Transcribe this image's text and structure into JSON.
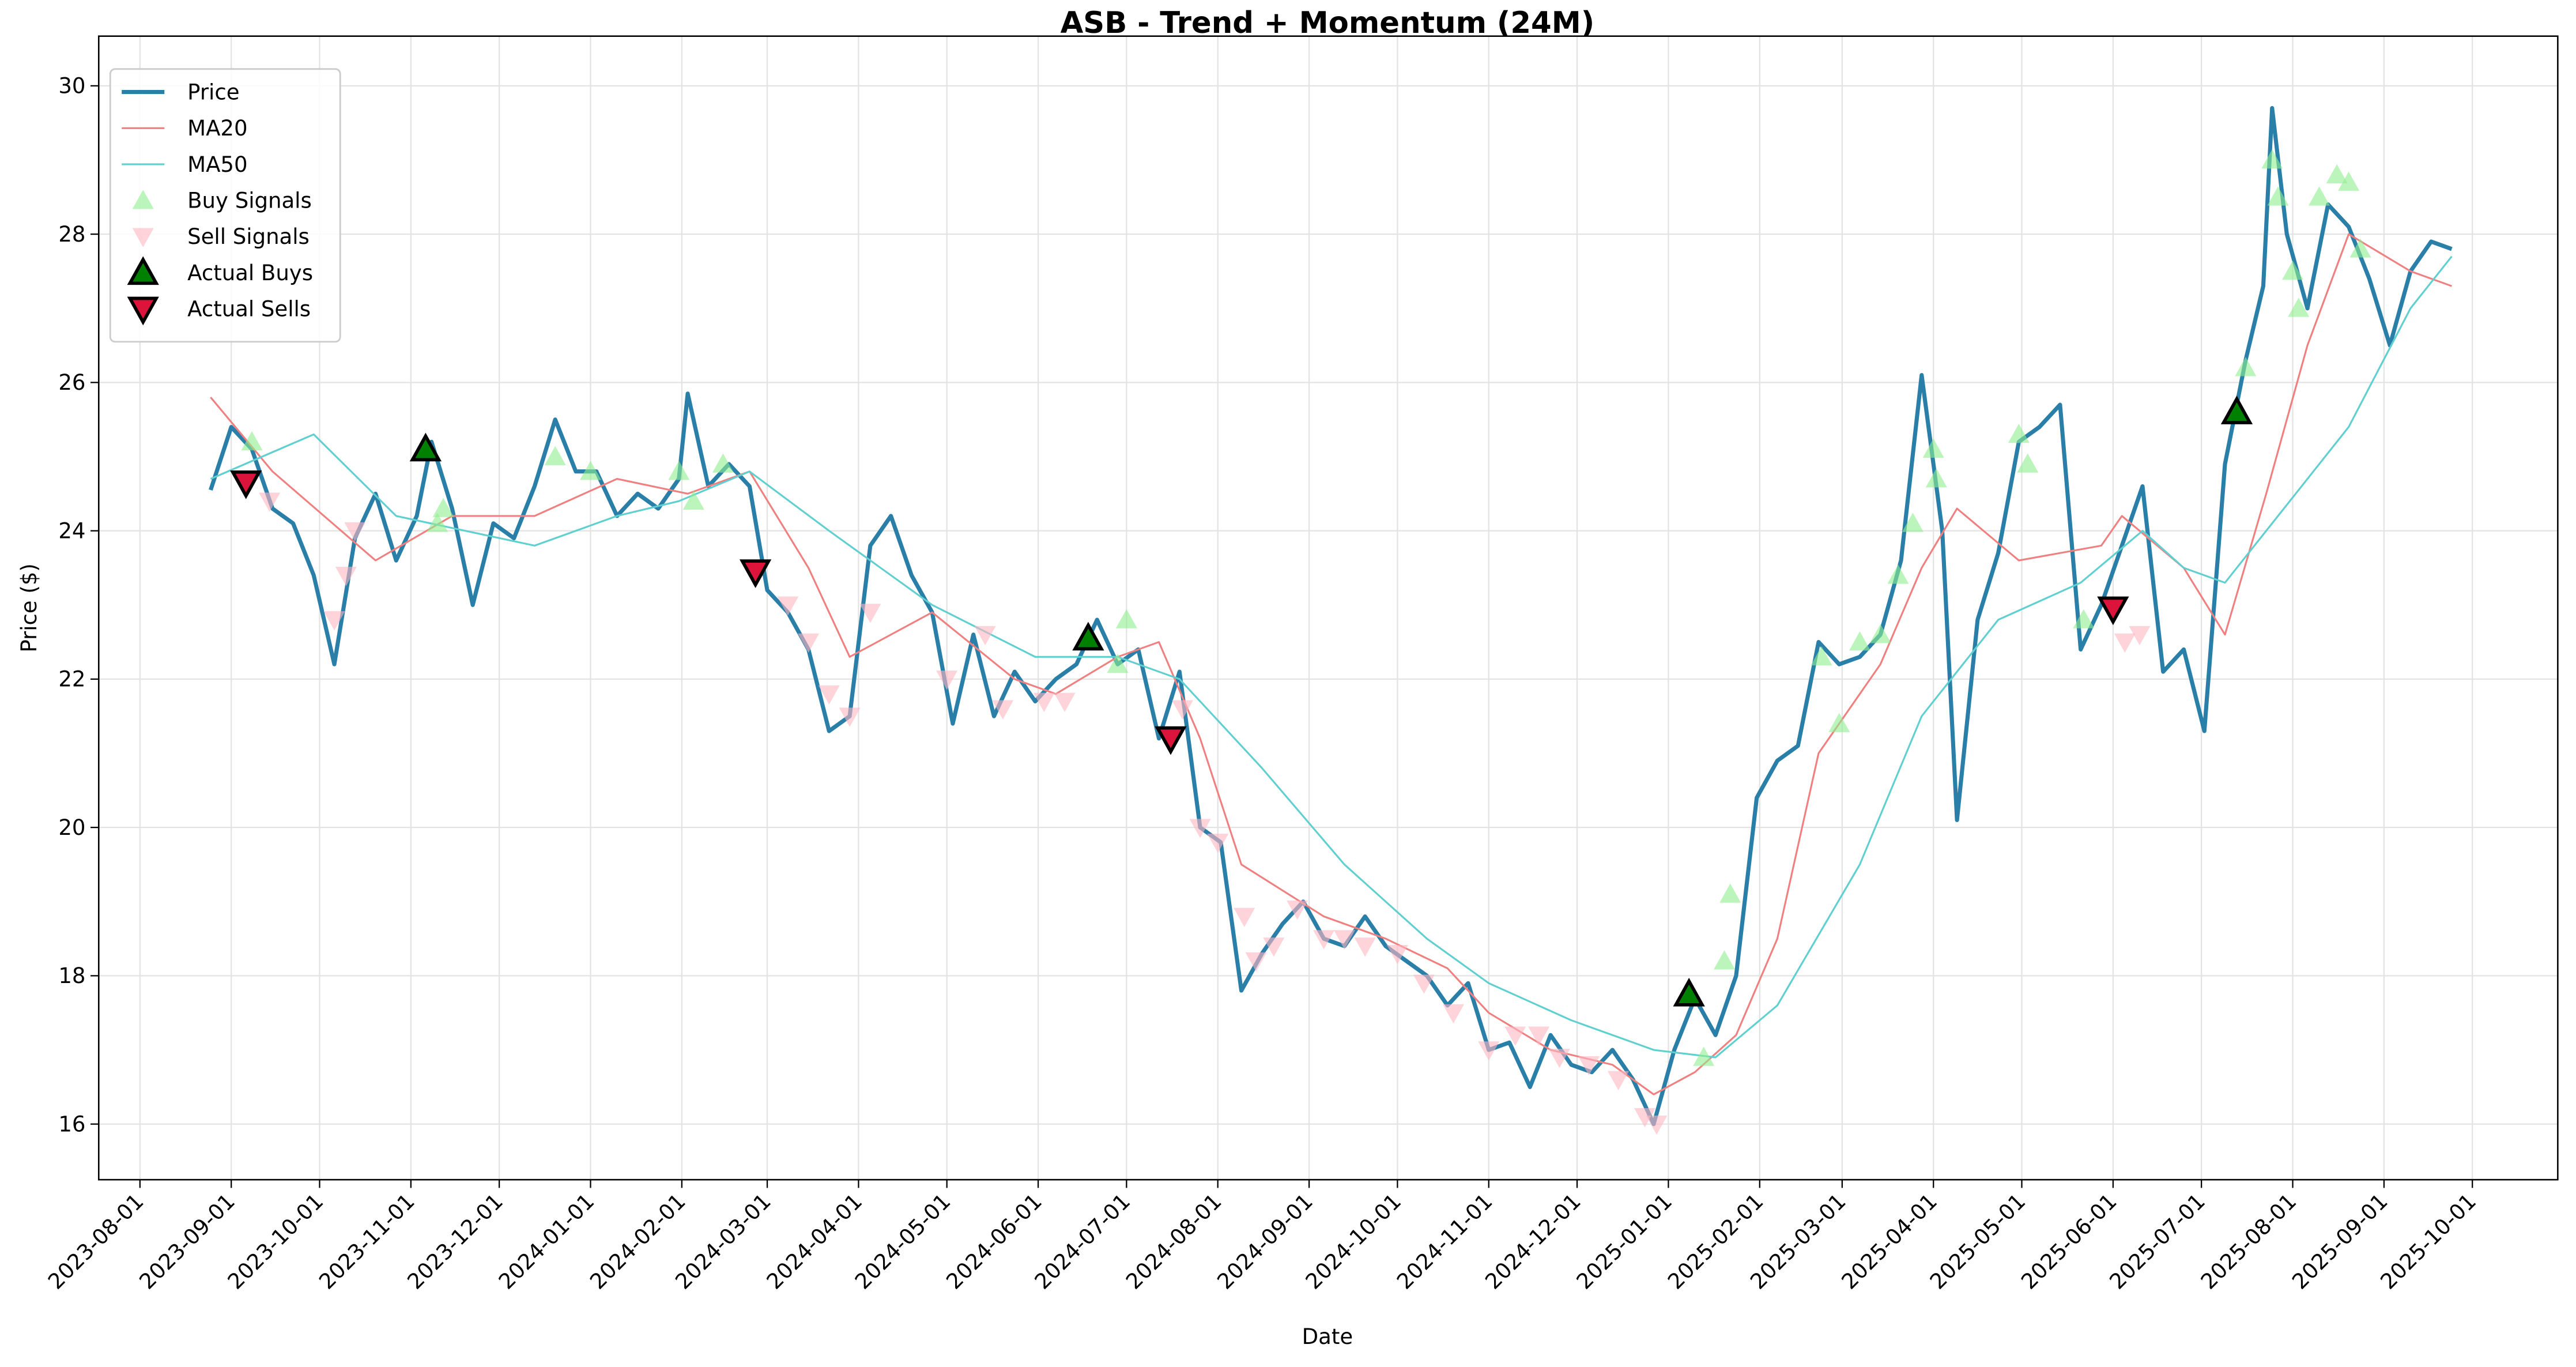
{
  "chart_data": {
    "type": "line",
    "title": "ASB - Trend + Momentum (24M)",
    "xlabel": "Date",
    "ylabel": "Price ($)",
    "xlim": [
      "2023-07-18",
      "2025-10-30"
    ],
    "ylim": [
      15.25,
      30.67
    ],
    "xticks": [
      "2023-08-01",
      "2023-09-01",
      "2023-10-01",
      "2023-11-01",
      "2023-12-01",
      "2024-01-01",
      "2024-02-01",
      "2024-03-01",
      "2024-04-01",
      "2024-05-01",
      "2024-06-01",
      "2024-07-01",
      "2024-08-01",
      "2024-09-01",
      "2024-10-01",
      "2024-11-01",
      "2024-12-01",
      "2025-01-01",
      "2025-02-01",
      "2025-03-01",
      "2025-04-01",
      "2025-05-01",
      "2025-06-01",
      "2025-07-01",
      "2025-08-01",
      "2025-09-01",
      "2025-10-01"
    ],
    "yticks": [
      16,
      18,
      20,
      22,
      24,
      26,
      28,
      30
    ],
    "grid": true,
    "legend": "upper left",
    "series": [
      {
        "name": "Price",
        "color": "#2a7fa8",
        "style": "line",
        "width": 2.5,
        "x": [
          "2023-08-25",
          "2023-09-01",
          "2023-09-08",
          "2023-09-15",
          "2023-09-22",
          "2023-09-29",
          "2023-10-06",
          "2023-10-13",
          "2023-10-20",
          "2023-10-27",
          "2023-11-03",
          "2023-11-08",
          "2023-11-15",
          "2023-11-22",
          "2023-11-29",
          "2023-12-06",
          "2023-12-13",
          "2023-12-20",
          "2023-12-27",
          "2024-01-03",
          "2024-01-10",
          "2024-01-17",
          "2024-01-24",
          "2024-01-31",
          "2024-02-03",
          "2024-02-10",
          "2024-02-17",
          "2024-02-24",
          "2024-03-01",
          "2024-03-08",
          "2024-03-15",
          "2024-03-22",
          "2024-03-29",
          "2024-04-05",
          "2024-04-12",
          "2024-04-19",
          "2024-04-26",
          "2024-05-03",
          "2024-05-10",
          "2024-05-17",
          "2024-05-24",
          "2024-05-31",
          "2024-06-07",
          "2024-06-14",
          "2024-06-21",
          "2024-06-28",
          "2024-07-05",
          "2024-07-12",
          "2024-07-19",
          "2024-07-26",
          "2024-08-02",
          "2024-08-09",
          "2024-08-16",
          "2024-08-23",
          "2024-08-30",
          "2024-09-06",
          "2024-09-13",
          "2024-09-20",
          "2024-09-27",
          "2024-10-04",
          "2024-10-11",
          "2024-10-18",
          "2024-10-25",
          "2024-11-01",
          "2024-11-08",
          "2024-11-15",
          "2024-11-22",
          "2024-11-29",
          "2024-12-06",
          "2024-12-13",
          "2024-12-20",
          "2024-12-27",
          "2025-01-03",
          "2025-01-10",
          "2025-01-17",
          "2025-01-24",
          "2025-01-31",
          "2025-02-07",
          "2025-02-14",
          "2025-02-21",
          "2025-02-28",
          "2025-03-07",
          "2025-03-14",
          "2025-03-21",
          "2025-03-28",
          "2025-04-04",
          "2025-04-09",
          "2025-04-16",
          "2025-04-23",
          "2025-04-30",
          "2025-05-07",
          "2025-05-14",
          "2025-05-21",
          "2025-05-28",
          "2025-06-04",
          "2025-06-11",
          "2025-06-18",
          "2025-06-25",
          "2025-07-02",
          "2025-07-09",
          "2025-07-16",
          "2025-07-22",
          "2025-07-25",
          "2025-07-30",
          "2025-08-06",
          "2025-08-13",
          "2025-08-20",
          "2025-08-27",
          "2025-09-03",
          "2025-09-10",
          "2025-09-17",
          "2025-09-24"
        ],
        "values": [
          24.55,
          25.4,
          25.1,
          24.3,
          24.1,
          23.4,
          22.2,
          23.9,
          24.5,
          23.6,
          24.2,
          25.2,
          24.3,
          23.0,
          24.1,
          23.9,
          24.6,
          25.5,
          24.8,
          24.8,
          24.2,
          24.5,
          24.3,
          24.7,
          25.85,
          24.6,
          24.9,
          24.6,
          23.2,
          22.9,
          22.4,
          21.3,
          21.5,
          23.8,
          24.2,
          23.4,
          22.9,
          21.4,
          22.6,
          21.5,
          22.1,
          21.7,
          22.0,
          22.2,
          22.8,
          22.2,
          22.4,
          21.2,
          22.1,
          20.0,
          19.8,
          17.8,
          18.3,
          18.7,
          19.0,
          18.5,
          18.4,
          18.8,
          18.4,
          18.2,
          18.0,
          17.6,
          17.9,
          17.0,
          17.1,
          16.5,
          17.2,
          16.8,
          16.7,
          17.0,
          16.6,
          16.0,
          17.0,
          17.7,
          17.2,
          18.0,
          20.4,
          20.9,
          21.1,
          22.5,
          22.2,
          22.3,
          22.6,
          23.6,
          26.1,
          24.0,
          20.1,
          22.8,
          23.7,
          25.2,
          25.4,
          25.7,
          22.4,
          23.0,
          23.8,
          24.6,
          22.1,
          22.4,
          21.3,
          24.9,
          26.3,
          27.3,
          29.7,
          28.0,
          27.0,
          28.4,
          28.1,
          27.4,
          26.5,
          27.5,
          27.9,
          27.8
        ]
      },
      {
        "name": "MA20",
        "color": "#f08080",
        "style": "line",
        "width": 1.1,
        "x": [
          "2023-08-25",
          "2023-09-15",
          "2023-10-20",
          "2023-11-15",
          "2023-12-13",
          "2024-01-10",
          "2024-02-03",
          "2024-02-24",
          "2024-03-15",
          "2024-03-29",
          "2024-04-26",
          "2024-05-24",
          "2024-06-07",
          "2024-06-28",
          "2024-07-12",
          "2024-07-26",
          "2024-08-09",
          "2024-09-06",
          "2024-09-27",
          "2024-10-18",
          "2024-11-01",
          "2024-11-22",
          "2024-12-13",
          "2024-12-27",
          "2025-01-10",
          "2025-01-24",
          "2025-02-07",
          "2025-02-21",
          "2025-03-14",
          "2025-03-28",
          "2025-04-09",
          "2025-04-30",
          "2025-05-28",
          "2025-06-04",
          "2025-06-25",
          "2025-07-09",
          "2025-07-23",
          "2025-08-06",
          "2025-08-20",
          "2025-09-10",
          "2025-09-24"
        ],
        "values": [
          25.8,
          24.8,
          23.6,
          24.2,
          24.2,
          24.7,
          24.5,
          24.8,
          23.5,
          22.3,
          22.9,
          22.0,
          21.8,
          22.3,
          22.5,
          21.2,
          19.5,
          18.8,
          18.5,
          18.1,
          17.5,
          17.0,
          16.8,
          16.4,
          16.7,
          17.2,
          18.5,
          21.0,
          22.2,
          23.5,
          24.3,
          23.6,
          23.8,
          24.2,
          23.5,
          22.6,
          24.5,
          26.5,
          28.0,
          27.5,
          27.3
        ]
      },
      {
        "name": "MA50",
        "color": "#5fcfcf",
        "style": "line",
        "width": 1.1,
        "x": [
          "2023-08-25",
          "2023-09-29",
          "2023-10-27",
          "2023-12-13",
          "2024-01-10",
          "2024-01-31",
          "2024-02-24",
          "2024-03-22",
          "2024-04-26",
          "2024-05-31",
          "2024-06-28",
          "2024-07-19",
          "2024-08-16",
          "2024-09-13",
          "2024-10-11",
          "2024-11-01",
          "2024-11-29",
          "2024-12-27",
          "2025-01-17",
          "2025-02-07",
          "2025-03-07",
          "2025-03-28",
          "2025-04-23",
          "2025-05-21",
          "2025-06-11",
          "2025-06-25",
          "2025-07-09",
          "2025-07-23",
          "2025-08-20",
          "2025-09-10",
          "2025-09-24"
        ],
        "values": [
          24.7,
          25.3,
          24.2,
          23.8,
          24.2,
          24.4,
          24.8,
          24.0,
          23.0,
          22.3,
          22.3,
          22.0,
          20.8,
          19.5,
          18.5,
          17.9,
          17.4,
          17.0,
          16.9,
          17.6,
          19.5,
          21.5,
          22.8,
          23.3,
          24.0,
          23.5,
          23.3,
          24.0,
          25.4,
          27.0,
          27.7
        ]
      },
      {
        "name": "Buy Signals",
        "color": "#90ee90",
        "style": "scatter",
        "marker": "up",
        "x": [
          "2023-09-08",
          "2023-11-10",
          "2023-11-12",
          "2023-12-20",
          "2024-01-01",
          "2024-01-31",
          "2024-02-05",
          "2024-02-15",
          "2024-06-28",
          "2024-07-01",
          "2025-01-13",
          "2025-01-20",
          "2025-01-22",
          "2025-02-22",
          "2025-02-28",
          "2025-03-07",
          "2025-03-14",
          "2025-03-20",
          "2025-03-25",
          "2025-04-01",
          "2025-04-02",
          "2025-04-30",
          "2025-05-03",
          "2025-05-22",
          "2025-07-16",
          "2025-07-25",
          "2025-07-27",
          "2025-08-01",
          "2025-08-03",
          "2025-08-10",
          "2025-08-16",
          "2025-08-20",
          "2025-08-24"
        ],
        "values": [
          25.2,
          24.1,
          24.3,
          25.0,
          24.8,
          24.8,
          24.4,
          24.9,
          22.2,
          22.8,
          16.9,
          18.2,
          19.1,
          22.3,
          21.4,
          22.5,
          22.6,
          23.4,
          24.1,
          25.1,
          24.7,
          25.3,
          24.9,
          22.8,
          26.2,
          29.0,
          28.5,
          27.5,
          27.0,
          28.5,
          28.8,
          28.7,
          27.8
        ]
      },
      {
        "name": "Sell Signals",
        "color": "#ffb6c1",
        "style": "scatter",
        "marker": "down",
        "x": [
          "2023-09-14",
          "2023-10-06",
          "2023-10-10",
          "2023-10-13",
          "2024-03-08",
          "2024-03-15",
          "2024-03-22",
          "2024-03-29",
          "2024-04-05",
          "2024-05-01",
          "2024-05-14",
          "2024-05-20",
          "2024-06-03",
          "2024-06-10",
          "2024-07-20",
          "2024-07-26",
          "2024-08-01",
          "2024-08-10",
          "2024-08-14",
          "2024-08-20",
          "2024-08-28",
          "2024-09-06",
          "2024-09-13",
          "2024-09-20",
          "2024-10-01",
          "2024-10-10",
          "2024-10-20",
          "2024-11-01",
          "2024-11-10",
          "2024-11-18",
          "2024-11-25",
          "2024-12-05",
          "2024-12-15",
          "2024-12-24",
          "2024-12-28",
          "2025-06-05",
          "2025-06-10"
        ],
        "values": [
          24.4,
          22.8,
          23.4,
          24.0,
          23.0,
          22.5,
          21.8,
          21.5,
          22.9,
          22.0,
          22.6,
          21.6,
          21.7,
          21.7,
          21.6,
          20.0,
          19.8,
          18.8,
          18.2,
          18.4,
          18.9,
          18.5,
          18.5,
          18.4,
          18.3,
          17.9,
          17.5,
          17.0,
          17.2,
          17.2,
          16.9,
          16.8,
          16.6,
          16.1,
          16.0,
          22.5,
          22.6
        ]
      },
      {
        "name": "Actual Buys",
        "color": "#008000",
        "style": "scatter",
        "marker": "up",
        "edge": "#000000",
        "x": [
          "2023-11-06",
          "2024-06-18",
          "2025-01-08",
          "2025-07-13"
        ],
        "values": [
          25.1,
          22.55,
          17.75,
          25.6
        ]
      },
      {
        "name": "Actual Sells",
        "color": "#dc143c",
        "style": "scatter",
        "marker": "down",
        "edge": "#000000",
        "x": [
          "2023-09-06",
          "2024-02-26",
          "2024-07-16",
          "2025-06-01"
        ],
        "values": [
          24.65,
          23.45,
          21.2,
          22.95
        ]
      }
    ]
  }
}
